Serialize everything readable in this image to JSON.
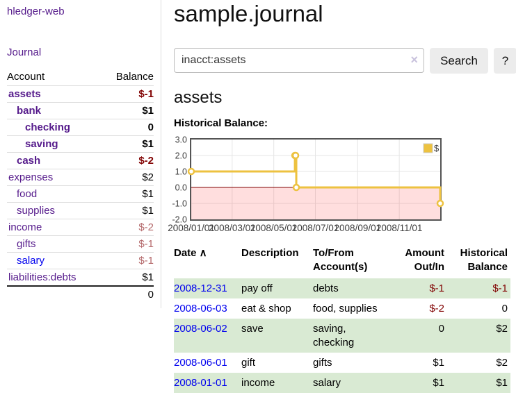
{
  "colors": {
    "link_visited_purple": "#551a8b",
    "link_blue": "#0000ee",
    "negative_strong_red": "#800000",
    "negative_soft_red": "#b4696b",
    "row_stripe_green": "#d9ead3",
    "chart_series_gold": "#edc240",
    "chart_zero_line_red": "#800000",
    "chart_negative_fill": "rgba(255,0,0,0.13)",
    "chart_border_gray": "#545454",
    "grid_gray": "#e6e6e6"
  },
  "sidebar": {
    "app_title": "hledger-web",
    "nav_journal": "Journal",
    "accounts_table": {
      "headers": {
        "account": "Account",
        "balance": "Balance"
      },
      "rows": [
        {
          "name": "assets",
          "indent": 1,
          "strong": true,
          "balance": "$-1",
          "neg": "strong"
        },
        {
          "name": "bank",
          "indent": 2,
          "strong": true,
          "balance": "$1"
        },
        {
          "name": "checking",
          "indent": 3,
          "strong": true,
          "balance": "0"
        },
        {
          "name": "saving",
          "indent": 3,
          "strong": true,
          "balance": "$1"
        },
        {
          "name": "cash",
          "indent": 2,
          "strong": true,
          "balance": "$-2",
          "neg": "strong"
        },
        {
          "name": "expenses",
          "indent": 1,
          "strong": false,
          "balance": "$2"
        },
        {
          "name": "food",
          "indent": 2,
          "strong": false,
          "balance": "$1"
        },
        {
          "name": "supplies",
          "indent": 2,
          "strong": false,
          "balance": "$1"
        },
        {
          "name": "income",
          "indent": 1,
          "strong": false,
          "balance": "$-2",
          "neg": "soft"
        },
        {
          "name": "gifts",
          "indent": 2,
          "strong": false,
          "balance": "$-1",
          "neg": "soft"
        },
        {
          "name": "salary",
          "indent": 2,
          "strong": false,
          "balance": "$-1",
          "neg": "soft",
          "link": "unvisited"
        },
        {
          "name": "liabilities:debts",
          "indent": 1,
          "strong": false,
          "balance": "$1"
        }
      ],
      "total": "0"
    }
  },
  "header": {
    "title": "sample.journal"
  },
  "search": {
    "value": "inacct:assets",
    "clear_icon": "×",
    "button_label": "Search",
    "help_label": "?"
  },
  "main": {
    "account_heading": "assets",
    "chart_title": "Historical Balance:"
  },
  "chart_data": {
    "type": "line",
    "step": true,
    "title": "Historical Balance",
    "legend": {
      "position": "top-right"
    },
    "series": [
      {
        "name": "$",
        "color": "#edc240",
        "points": [
          [
            "2008-01-01",
            1
          ],
          [
            "2008-06-01",
            2
          ],
          [
            "2008-06-02",
            2
          ],
          [
            "2008-06-03",
            0
          ],
          [
            "2008-12-31",
            -1
          ]
        ]
      }
    ],
    "x_range": [
      "2008-01-01",
      "2008-12-31"
    ],
    "ylim": [
      -2,
      3
    ],
    "y_ticks": [
      {
        "value": 3,
        "label": "3.0"
      },
      {
        "value": 2,
        "label": "2.0"
      },
      {
        "value": 1,
        "label": "1.0"
      },
      {
        "value": 0,
        "label": "0.0"
      },
      {
        "value": -1,
        "label": "-1.0"
      },
      {
        "value": -2,
        "label": "-2.0"
      }
    ],
    "x_ticks": [
      {
        "date": "2008-01-01",
        "label": "2008/01/01"
      },
      {
        "date": "2008-03-01",
        "label": "2008/03/01"
      },
      {
        "date": "2008-05-01",
        "label": "2008/05/01"
      },
      {
        "date": "2008-07-01",
        "label": "2008/07/01"
      },
      {
        "date": "2008-09-01",
        "label": "2008/09/01"
      },
      {
        "date": "2008-11-01",
        "label": "2008/11/01"
      }
    ],
    "grid": true,
    "negative_region_shaded": true
  },
  "register": {
    "headers": [
      {
        "label": "Date",
        "icon": "sort-asc",
        "icon_glyph": "∧",
        "align": "left"
      },
      {
        "label": "Description",
        "align": "left"
      },
      {
        "label": "To/From Account(s)",
        "align": "left"
      },
      {
        "label": "Amount Out/In",
        "align": "right"
      },
      {
        "label": "Historical Balance",
        "align": "right"
      }
    ],
    "rows": [
      {
        "date": "2008-12-31",
        "description": "pay off",
        "accounts": "debts",
        "amount": "$-1",
        "amount_neg": true,
        "balance": "$-1",
        "balance_neg": true
      },
      {
        "date": "2008-06-03",
        "description": "eat & shop",
        "accounts": "food, supplies",
        "amount": "$-2",
        "amount_neg": true,
        "balance": "0",
        "balance_neg": false
      },
      {
        "date": "2008-06-02",
        "description": "save",
        "accounts": "saving, checking",
        "amount": "0",
        "amount_neg": false,
        "balance": "$2",
        "balance_neg": false
      },
      {
        "date": "2008-06-01",
        "description": "gift",
        "accounts": "gifts",
        "amount": "$1",
        "amount_neg": false,
        "balance": "$2",
        "balance_neg": false
      },
      {
        "date": "2008-01-01",
        "description": "income",
        "accounts": "salary",
        "amount": "$1",
        "amount_neg": false,
        "balance": "$1",
        "balance_neg": false
      }
    ]
  }
}
